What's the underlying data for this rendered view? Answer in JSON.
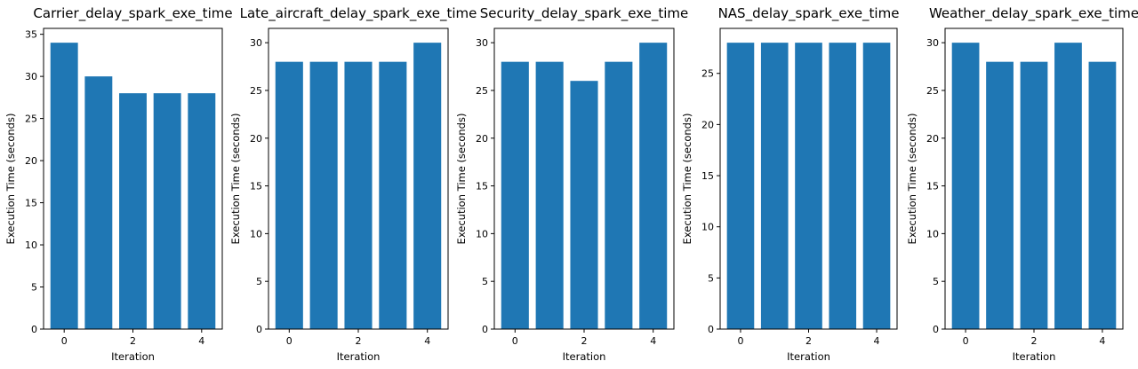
{
  "colors": {
    "bar": "#1f77b4",
    "axis": "#000000",
    "background": "#ffffff"
  },
  "chart_data": [
    {
      "type": "bar",
      "title": "Carrier_delay_spark_exe_time",
      "xlabel": "Iteration",
      "ylabel": "Execution Time (seconds)",
      "x": [
        0,
        1,
        2,
        3,
        4
      ],
      "values": [
        34,
        30,
        28,
        28,
        28
      ],
      "xticks": [
        "0",
        "2",
        "4"
      ],
      "yticks": [
        "0",
        "5",
        "10",
        "15",
        "20",
        "25",
        "30",
        "35"
      ],
      "ylim": [
        0,
        35.7
      ],
      "grid": false,
      "legend": "none"
    },
    {
      "type": "bar",
      "title": "Late_aircraft_delay_spark_exe_time",
      "xlabel": "Iteration",
      "ylabel": "Execution Time (seconds)",
      "x": [
        0,
        1,
        2,
        3,
        4
      ],
      "values": [
        28,
        28,
        28,
        28,
        30
      ],
      "xticks": [
        "0",
        "2",
        "4"
      ],
      "yticks": [
        "0",
        "5",
        "10",
        "15",
        "20",
        "25",
        "30"
      ],
      "ylim": [
        0,
        31.5
      ],
      "grid": false,
      "legend": "none"
    },
    {
      "type": "bar",
      "title": "Security_delay_spark_exe_time",
      "xlabel": "Iteration",
      "ylabel": "Execution Time (seconds)",
      "x": [
        0,
        1,
        2,
        3,
        4
      ],
      "values": [
        28,
        28,
        26,
        28,
        30
      ],
      "xticks": [
        "0",
        "2",
        "4"
      ],
      "yticks": [
        "0",
        "5",
        "10",
        "15",
        "20",
        "25",
        "30"
      ],
      "ylim": [
        0,
        31.5
      ],
      "grid": false,
      "legend": "none"
    },
    {
      "type": "bar",
      "title": "NAS_delay_spark_exe_time",
      "xlabel": "Iteration",
      "ylabel": "Execution Time (seconds)",
      "x": [
        0,
        1,
        2,
        3,
        4
      ],
      "values": [
        28,
        28,
        28,
        28,
        28
      ],
      "xticks": [
        "0",
        "2",
        "4"
      ],
      "yticks": [
        "0",
        "5",
        "10",
        "15",
        "20",
        "25"
      ],
      "ylim": [
        0,
        29.4
      ],
      "grid": false,
      "legend": "none"
    },
    {
      "type": "bar",
      "title": "Weather_delay_spark_exe_time",
      "xlabel": "Iteration",
      "ylabel": "Execution Time (seconds)",
      "x": [
        0,
        1,
        2,
        3,
        4
      ],
      "values": [
        30,
        28,
        28,
        30,
        28
      ],
      "xticks": [
        "0",
        "2",
        "4"
      ],
      "yticks": [
        "0",
        "5",
        "10",
        "15",
        "20",
        "25",
        "30"
      ],
      "ylim": [
        0,
        31.5
      ],
      "grid": false,
      "legend": "none"
    }
  ]
}
